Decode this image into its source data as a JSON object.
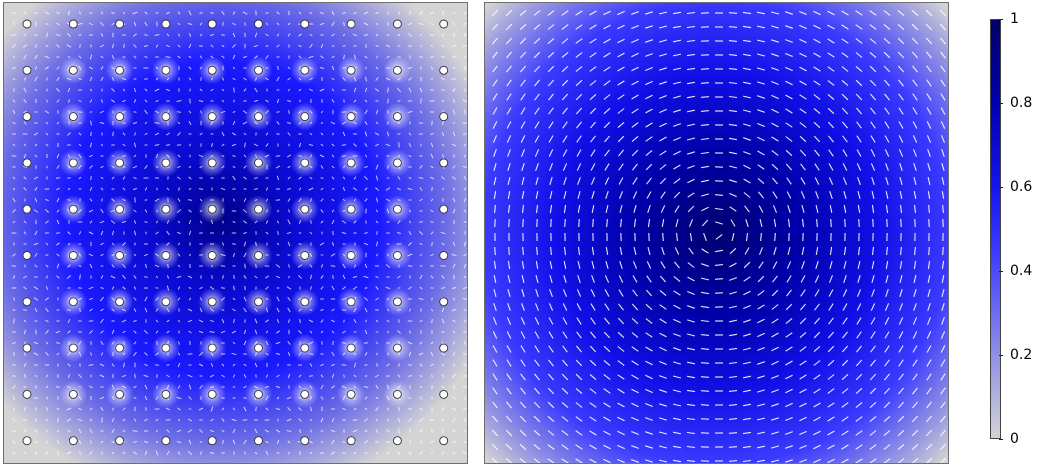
{
  "colors": {
    "background_low": "#d4d4d4",
    "mid": "#1a1aff",
    "high": "#000066",
    "arrow": "#ffffff",
    "rod_fill": "#ffffff",
    "rod_stroke": "#333333"
  },
  "colormap": {
    "min": 0,
    "max": 1,
    "ticks": [
      {
        "value": 1,
        "label": "1"
      },
      {
        "value": 0.8,
        "label": "0.8"
      },
      {
        "value": 0.6,
        "label": "0.6"
      },
      {
        "value": 0.4,
        "label": "0.4"
      },
      {
        "value": 0.2,
        "label": "0.2"
      },
      {
        "value": 0,
        "label": "0"
      }
    ]
  },
  "panels": [
    {
      "id": "left",
      "content": "photonic crystal array of 10x10 rods with normalized field magnitude and arrow field"
    },
    {
      "id": "right",
      "content": "homogeneous cavity mode with normalized field magnitude and circulating arrow field"
    }
  ],
  "rod_grid": {
    "rows": 10,
    "cols": 10
  }
}
